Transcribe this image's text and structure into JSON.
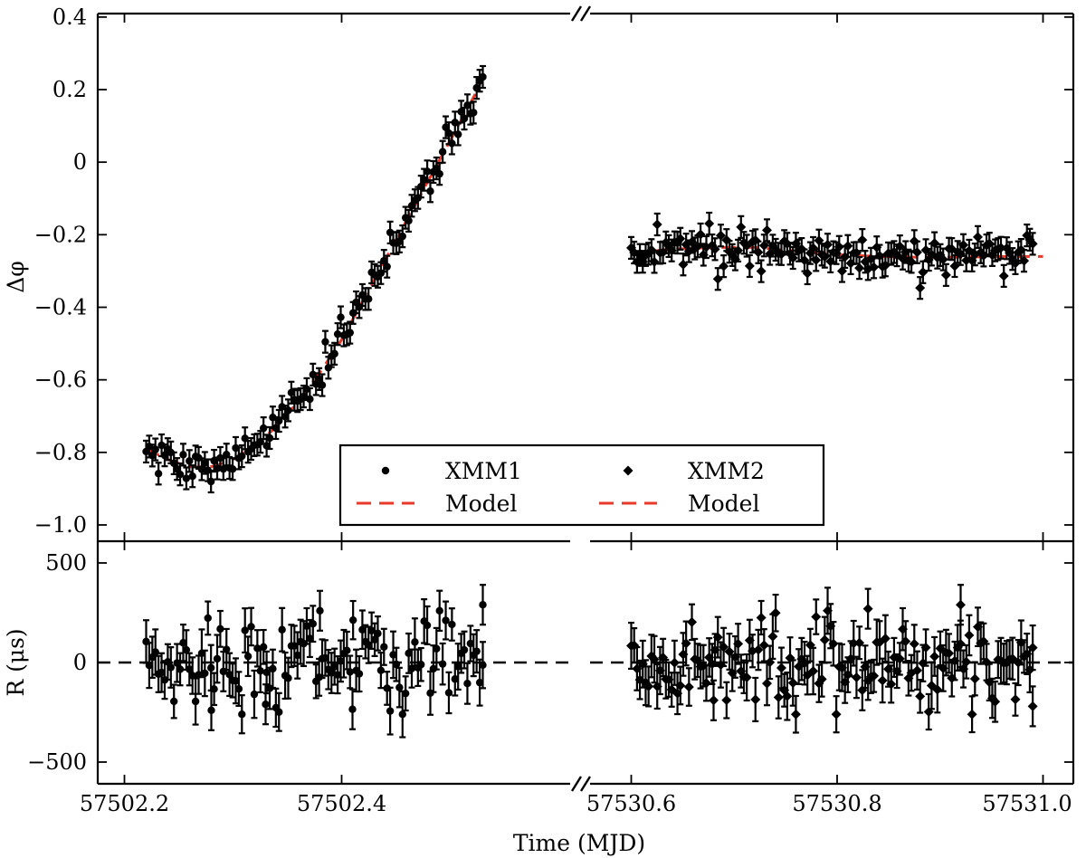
{
  "chart_data": {
    "type": "scatter",
    "panels": [
      {
        "id": "top",
        "ylabel": "Δφ",
        "ylim": [
          -1.05,
          0.4
        ],
        "yticks": [
          0.4,
          0.2,
          0,
          -0.2,
          -0.4,
          -0.6,
          -0.8,
          -1.0
        ],
        "ytick_labels": [
          "0.4",
          "0.2",
          "0",
          "−0.2",
          "−0.4",
          "−0.6",
          "−0.8",
          "−1.0"
        ]
      },
      {
        "id": "bottom",
        "ylabel": "R (μs)",
        "ylim": [
          -500,
          500
        ],
        "yticks": [
          500,
          0,
          -500
        ],
        "ytick_labels": [
          "500",
          "0",
          "−500"
        ],
        "reference_line_y": 0
      }
    ],
    "xlabel": "Time (MJD)",
    "x_segments": [
      {
        "name": "XMM1",
        "xlim": [
          57502.2,
          57502.54
        ],
        "xticks": [
          57502.2,
          57502.4
        ],
        "xtick_labels": [
          "57502.2",
          "57502.4"
        ]
      },
      {
        "name": "XMM2",
        "xlim": [
          57530.6,
          57531.0
        ],
        "xticks": [
          57530.6,
          57530.8,
          57531.0
        ],
        "xtick_labels": [
          "57530.6",
          "57530.8",
          "57531.0"
        ]
      }
    ],
    "axis_break": "//",
    "legend": {
      "placement": "lower-center",
      "entries": [
        {
          "label": "XMM1",
          "marker": "circle"
        },
        {
          "label": "XMM2",
          "marker": "diamond"
        },
        {
          "label": "Model",
          "style": "dashed-line"
        },
        {
          "label": "Model",
          "style": "dashed-line"
        }
      ]
    },
    "colors": {
      "data": "#000000",
      "model": "#e8392a"
    },
    "series": [
      {
        "name": "XMM1",
        "marker": "circle",
        "x_range": [
          57502.22,
          57502.53
        ],
        "n_points": 110,
        "model_dphi": [
          [
            57502.22,
            -0.79
          ],
          [
            57502.24,
            -0.82
          ],
          [
            57502.26,
            -0.84
          ],
          [
            57502.28,
            -0.84
          ],
          [
            57502.3,
            -0.82
          ],
          [
            57502.32,
            -0.78
          ],
          [
            57502.34,
            -0.73
          ],
          [
            57502.36,
            -0.66
          ],
          [
            57502.38,
            -0.58
          ],
          [
            57502.4,
            -0.49
          ],
          [
            57502.42,
            -0.38
          ],
          [
            57502.44,
            -0.27
          ],
          [
            57502.46,
            -0.16
          ],
          [
            57502.48,
            -0.05
          ],
          [
            57502.5,
            0.06
          ],
          [
            57502.52,
            0.17
          ],
          [
            57502.53,
            0.23
          ]
        ],
        "dphi_scatter": 0.025,
        "dphi_error": 0.03,
        "residual_scatter_us": 110,
        "residual_error_us": 100,
        "residual_extremes": [
          [
            57502.33,
            -210
          ],
          [
            57502.28,
            -240
          ],
          [
            57502.41,
            -235
          ],
          [
            57502.53,
            290
          ],
          [
            57502.38,
            260
          ]
        ]
      },
      {
        "name": "XMM2",
        "marker": "diamond",
        "x_range": [
          57530.6,
          57530.99
        ],
        "n_points": 140,
        "model_dphi": [
          [
            57530.6,
            -0.25
          ],
          [
            57530.64,
            -0.24
          ],
          [
            57530.68,
            -0.235
          ],
          [
            57530.72,
            -0.235
          ],
          [
            57530.76,
            -0.245
          ],
          [
            57530.8,
            -0.255
          ],
          [
            57530.84,
            -0.26
          ],
          [
            57530.88,
            -0.262
          ],
          [
            57530.92,
            -0.262
          ],
          [
            57530.96,
            -0.26
          ],
          [
            57531.0,
            -0.26
          ]
        ],
        "dphi_scatter": 0.025,
        "dphi_error": 0.03,
        "residual_scatter_us": 110,
        "residual_error_us": 100,
        "residual_extremes": [
          [
            57530.92,
            290
          ],
          [
            57530.68,
            -190
          ],
          [
            57530.99,
            -220
          ],
          [
            57530.83,
            270
          ]
        ]
      }
    ]
  }
}
